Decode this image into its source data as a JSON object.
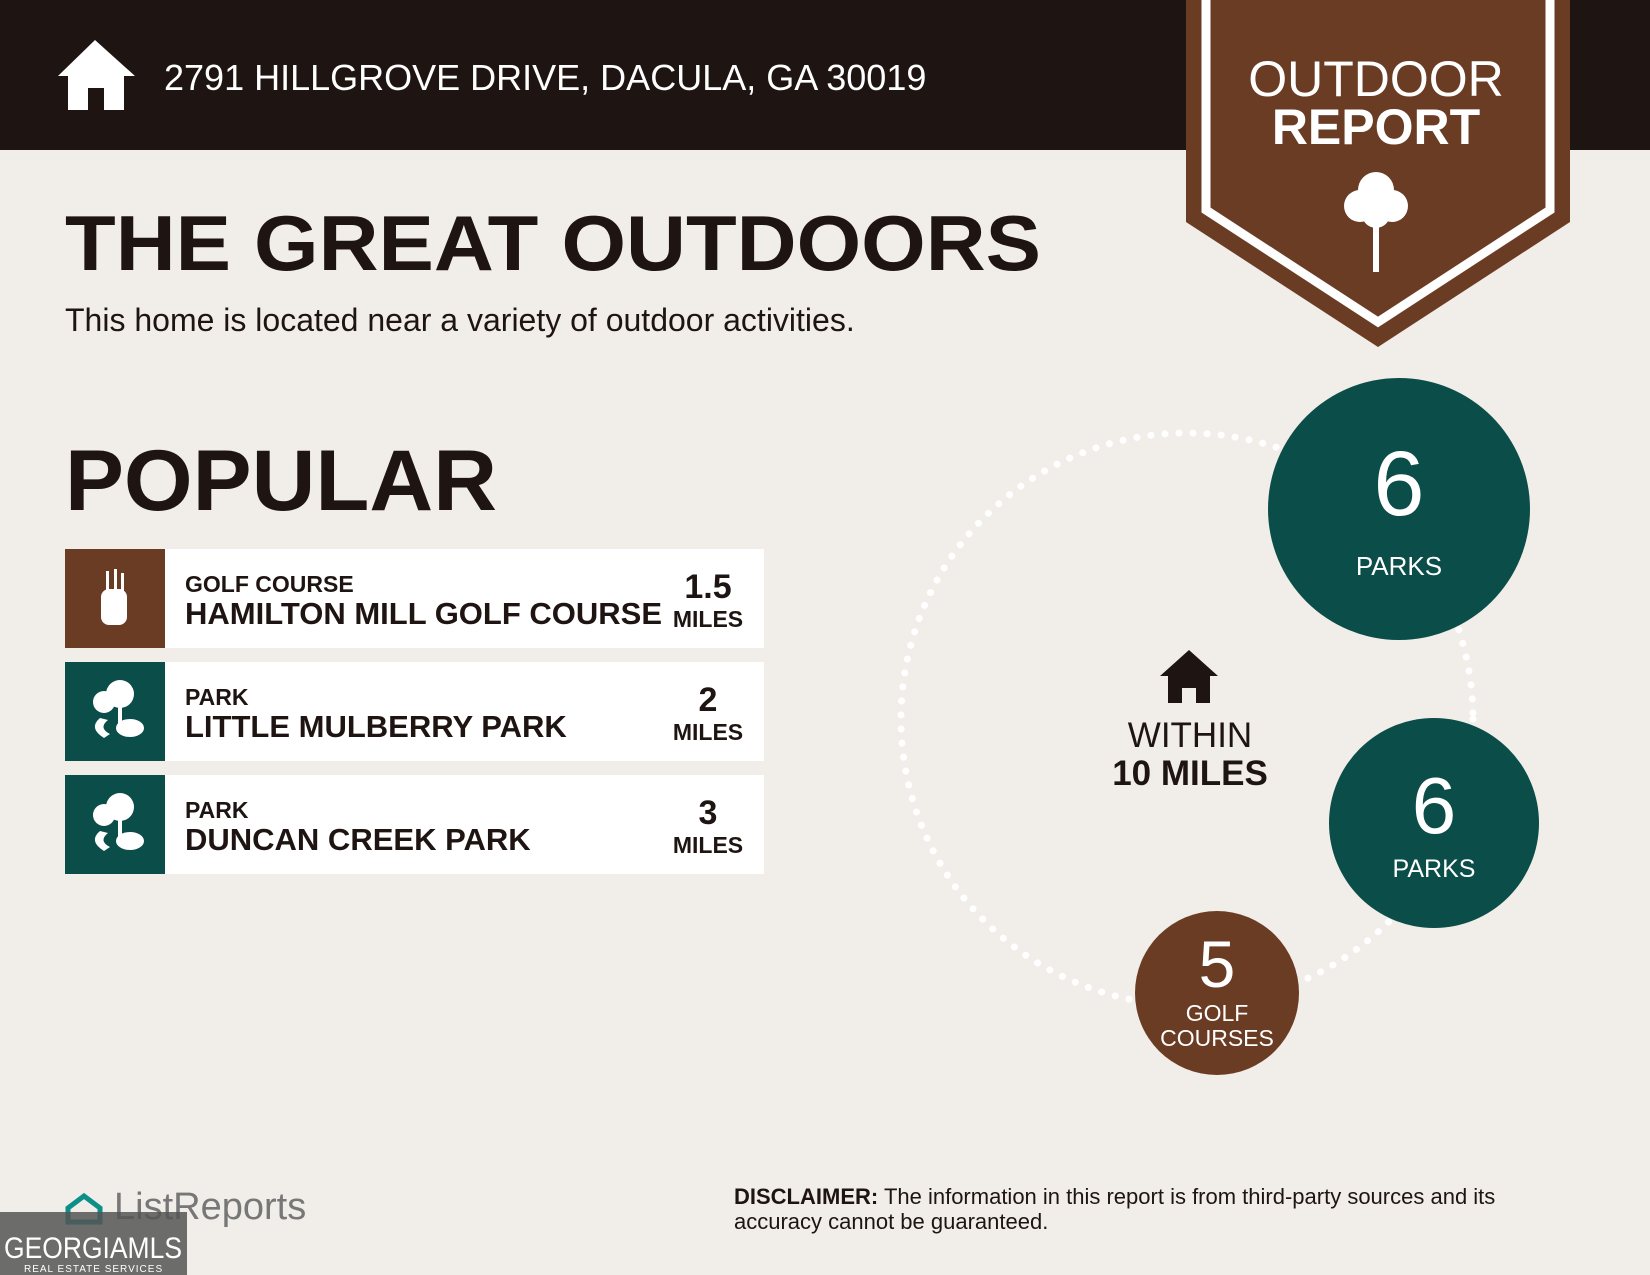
{
  "header": {
    "address": "2791 HILLGROVE DRIVE, DACULA, GA 30019"
  },
  "badge": {
    "line1": "OUTDOOR",
    "line2": "REPORT"
  },
  "title": "THE GREAT OUTDOORS",
  "subtitle": "This home is located near a variety of outdoor activities.",
  "popular": {
    "heading": "POPULAR",
    "items": [
      {
        "category": "GOLF COURSE",
        "name": "HAMILTON MILL GOLF COURSE",
        "distance": "1.5",
        "unit": "MILES"
      },
      {
        "category": "PARK",
        "name": "LITTLE MULBERRY PARK",
        "distance": "2",
        "unit": "MILES"
      },
      {
        "category": "PARK",
        "name": "DUNCAN CREEK PARK",
        "distance": "3",
        "unit": "MILES"
      }
    ]
  },
  "radius": {
    "line1": "WITHIN",
    "line2": "10 MILES"
  },
  "counts": [
    {
      "count": "6",
      "label": [
        "PARKS"
      ]
    },
    {
      "count": "6",
      "label": [
        "PARKS"
      ]
    },
    {
      "count": "5",
      "label": [
        "GOLF",
        "COURSES"
      ]
    }
  ],
  "footer": {
    "logo": "ListReports",
    "mls": "GEORGIAMLS",
    "mls_sub": "REAL ESTATE SERVICES",
    "disclaimer_label": "DISCLAIMER:",
    "disclaimer_line1": "The information in this report is from third-party sources and its",
    "disclaimer_line2": "accuracy cannot be guaranteed."
  }
}
